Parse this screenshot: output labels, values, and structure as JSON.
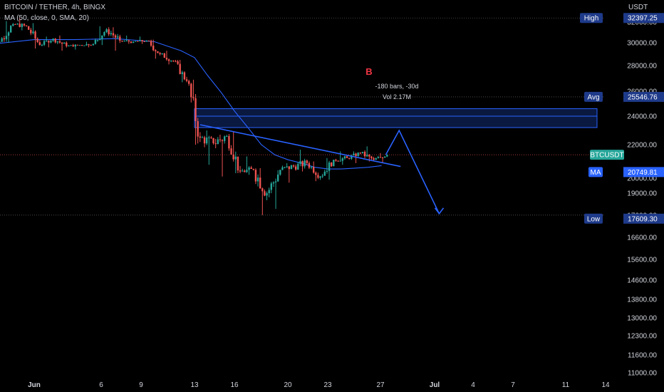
{
  "legend": {
    "symbol": "BITCOIN / TETHER, 4h, BINGX",
    "ma": "MA (50, close, 0, SMA, 20)"
  },
  "colors": {
    "background": "#000000",
    "up": "#26a69a",
    "down": "#ef5350",
    "ma_line": "#2962ff",
    "drawing": "#2962ff",
    "text": "#d1d4dc",
    "tag_dark": "#1e3a8a",
    "tag_teal": "#26a69a",
    "tag_blue": "#2962ff"
  },
  "chart_data": {
    "type": "candlestick",
    "currency": "USDT",
    "y_axis_ticks": [
      "32000.00",
      "30000.00",
      "28000.00",
      "26000.00",
      "24000.00",
      "22000.00",
      "20000.00",
      "19000.00",
      "17600.00",
      "16600.00",
      "15600.00",
      "14600.00",
      "13800.00",
      "13000.00",
      "12300.00",
      "11600.00",
      "11000.00"
    ],
    "x_axis_ticks": [
      "Jun",
      "6",
      "9",
      "13",
      "16",
      "20",
      "23",
      "27",
      "Jul",
      "4",
      "7",
      "11",
      "14"
    ],
    "price_tags": {
      "high": {
        "label": "High",
        "value": "32397.25"
      },
      "avg": {
        "label": "Avg",
        "value": "25546.76"
      },
      "last": {
        "label": "BTCUSDT",
        "value": "21398"
      },
      "ma": {
        "label": "MA",
        "value": "20749.81"
      },
      "low": {
        "label": "Low",
        "value": "17609.30"
      }
    },
    "annotations": {
      "marker": "B",
      "bars": "-180 bars, -30d",
      "volume": "Vol 2.17M"
    },
    "ohlc_daily": [
      {
        "d": "May 29",
        "o": 29200,
        "h": 30200,
        "l": 28900,
        "c": 30100
      },
      {
        "d": "May 30",
        "o": 30100,
        "h": 32100,
        "l": 30000,
        "c": 31800
      },
      {
        "d": "May 31",
        "o": 31800,
        "h": 32397,
        "l": 31200,
        "c": 31600
      },
      {
        "d": "Jun 1",
        "o": 31600,
        "h": 31900,
        "l": 29500,
        "c": 29800
      },
      {
        "d": "Jun 2",
        "o": 29800,
        "h": 30600,
        "l": 29600,
        "c": 30400
      },
      {
        "d": "Jun 3",
        "o": 30400,
        "h": 30700,
        "l": 29300,
        "c": 29700
      },
      {
        "d": "Jun 4",
        "o": 29700,
        "h": 29900,
        "l": 29400,
        "c": 29800
      },
      {
        "d": "Jun 5",
        "o": 29800,
        "h": 30100,
        "l": 29600,
        "c": 29900
      },
      {
        "d": "Jun 6",
        "o": 29900,
        "h": 31600,
        "l": 29800,
        "c": 31300
      },
      {
        "d": "Jun 7",
        "o": 31300,
        "h": 31500,
        "l": 29300,
        "c": 30200
      },
      {
        "d": "Jun 8",
        "o": 30200,
        "h": 30700,
        "l": 29900,
        "c": 30100
      },
      {
        "d": "Jun 9",
        "o": 30100,
        "h": 30600,
        "l": 29900,
        "c": 30200
      },
      {
        "d": "Jun 10",
        "o": 30200,
        "h": 30300,
        "l": 28600,
        "c": 29000
      },
      {
        "d": "Jun 11",
        "o": 29000,
        "h": 29300,
        "l": 28100,
        "c": 28400
      },
      {
        "d": "Jun 12",
        "o": 28400,
        "h": 28500,
        "l": 26700,
        "c": 26800
      },
      {
        "d": "Jun 13",
        "o": 26800,
        "h": 26900,
        "l": 22000,
        "c": 22500
      },
      {
        "d": "Jun 14",
        "o": 22500,
        "h": 23000,
        "l": 20800,
        "c": 22100
      },
      {
        "d": "Jun 15",
        "o": 22100,
        "h": 22700,
        "l": 20100,
        "c": 22600
      },
      {
        "d": "Jun 16",
        "o": 22600,
        "h": 22900,
        "l": 20300,
        "c": 20400
      },
      {
        "d": "Jun 17",
        "o": 20400,
        "h": 21300,
        "l": 20200,
        "c": 20500
      },
      {
        "d": "Jun 18",
        "o": 20500,
        "h": 20600,
        "l": 17609,
        "c": 19000
      },
      {
        "d": "Jun 19",
        "o": 19000,
        "h": 20500,
        "l": 18000,
        "c": 20500
      },
      {
        "d": "Jun 20",
        "o": 20500,
        "h": 20900,
        "l": 19700,
        "c": 20700
      },
      {
        "d": "Jun 21",
        "o": 20700,
        "h": 21700,
        "l": 20400,
        "c": 20900
      },
      {
        "d": "Jun 22",
        "o": 20900,
        "h": 21000,
        "l": 19800,
        "c": 20100
      },
      {
        "d": "Jun 23",
        "o": 20100,
        "h": 21200,
        "l": 19900,
        "c": 21100
      },
      {
        "d": "Jun 24",
        "o": 21100,
        "h": 21600,
        "l": 20800,
        "c": 21200
      },
      {
        "d": "Jun 25",
        "o": 21200,
        "h": 21600,
        "l": 20900,
        "c": 21500
      },
      {
        "d": "Jun 26",
        "o": 21500,
        "h": 21900,
        "l": 21000,
        "c": 21100
      },
      {
        "d": "Jun 27",
        "o": 21100,
        "h": 21500,
        "l": 20900,
        "c": 21398
      }
    ],
    "ma_series": [
      {
        "d": "May 29",
        "v": 29900
      },
      {
        "d": "Jun 1",
        "v": 30300
      },
      {
        "d": "Jun 4",
        "v": 30300
      },
      {
        "d": "Jun 7",
        "v": 30400
      },
      {
        "d": "Jun 10",
        "v": 30100
      },
      {
        "d": "Jun 12",
        "v": 29300
      },
      {
        "d": "Jun 13",
        "v": 28700
      },
      {
        "d": "Jun 14",
        "v": 27200
      },
      {
        "d": "Jun 15",
        "v": 25900
      },
      {
        "d": "Jun 16",
        "v": 24400
      },
      {
        "d": "Jun 17",
        "v": 23200
      },
      {
        "d": "Jun 18",
        "v": 22000
      },
      {
        "d": "Jun 19",
        "v": 21400
      },
      {
        "d": "Jun 20",
        "v": 21100
      },
      {
        "d": "Jun 21",
        "v": 20900
      },
      {
        "d": "Jun 22",
        "v": 20650
      },
      {
        "d": "Jun 23",
        "v": 20550
      },
      {
        "d": "Jun 24",
        "v": 20550
      },
      {
        "d": "Jun 25",
        "v": 20600
      },
      {
        "d": "Jun 26",
        "v": 20650
      },
      {
        "d": "Jun 27",
        "v": 20750
      }
    ],
    "drawings": {
      "range_box": {
        "from": "Jun 13",
        "to": "Jul 14",
        "top": 24600,
        "bottom": 23200,
        "mid": 24000
      },
      "trend_line": {
        "from": {
          "d": "Jun 13",
          "v": 23400
        },
        "to": {
          "d": "Jun 28",
          "v": 20700
        }
      },
      "projection_path": [
        {
          "d": "Jun 27",
          "v": 21398
        },
        {
          "d": "Jun 28",
          "v": 23000
        },
        {
          "d": "Jul 1",
          "v": 17700
        }
      ]
    },
    "dotted_levels": [
      32397.25,
      25546.76,
      21398,
      17609.3
    ]
  }
}
